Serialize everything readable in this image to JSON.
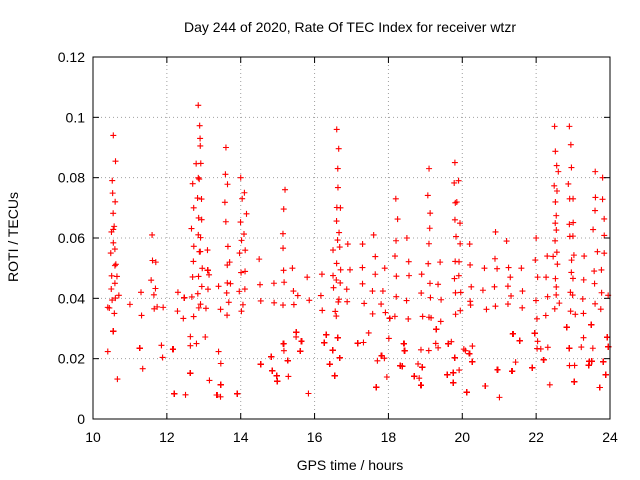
{
  "chart_data": {
    "type": "scatter",
    "title": "Day 244 of 2020, Rate Of TEC Index for receiver wtzr",
    "xlabel": "GPS time / hours",
    "ylabel": "ROTI / TECUs",
    "xlim": [
      10,
      24
    ],
    "ylim": [
      0,
      0.12
    ],
    "x_ticks": [
      10,
      12,
      14,
      16,
      18,
      20,
      22,
      24
    ],
    "y_ticks": [
      0,
      0.02,
      0.04,
      0.06,
      0.08,
      0.1,
      0.12
    ],
    "x_tick_labels": [
      "10",
      "12",
      "14",
      "16",
      "18",
      "20",
      "22",
      "24"
    ],
    "y_tick_labels": [
      "0",
      "0.02",
      "0.04",
      "0.06",
      "0.08",
      "0.1",
      "0.12"
    ],
    "grid": true,
    "marker": "+",
    "series": [
      {
        "name": "ROTI",
        "color": "#ff0000",
        "x": [
          10.4,
          10.5,
          10.55,
          10.6,
          10.7,
          11.0,
          11.3,
          11.6,
          11.7,
          11.9,
          12.3,
          12.7,
          12.85,
          12.9,
          13.1,
          13.4,
          13.6,
          13.7,
          14.0,
          14.1,
          14.5,
          14.9,
          15.2,
          15.4,
          15.8,
          16.2,
          16.5,
          16.6,
          16.7,
          16.9,
          17.3,
          17.6,
          17.9,
          18.2,
          18.5,
          18.9,
          19.1,
          19.4,
          19.8,
          19.9,
          20.2,
          20.6,
          20.9,
          21.2,
          21.3,
          21.6,
          22.0,
          22.3,
          22.5,
          22.6,
          22.9,
          23.0,
          23.3,
          23.6,
          23.8,
          23.95
        ],
        "y": [
          0.037,
          0.062,
          0.094,
          0.072,
          0.041,
          0.038,
          0.042,
          0.061,
          0.052,
          0.037,
          0.042,
          0.078,
          0.104,
          0.093,
          0.056,
          0.044,
          0.09,
          0.052,
          0.08,
          0.075,
          0.053,
          0.045,
          0.076,
          0.05,
          0.047,
          0.048,
          0.056,
          0.096,
          0.07,
          0.058,
          0.058,
          0.061,
          0.05,
          0.073,
          0.06,
          0.048,
          0.083,
          0.052,
          0.085,
          0.079,
          0.058,
          0.05,
          0.062,
          0.059,
          0.047,
          0.05,
          0.06,
          0.054,
          0.097,
          0.082,
          0.097,
          0.073,
          0.054,
          0.082,
          0.08,
          0.041
        ]
      }
    ]
  }
}
